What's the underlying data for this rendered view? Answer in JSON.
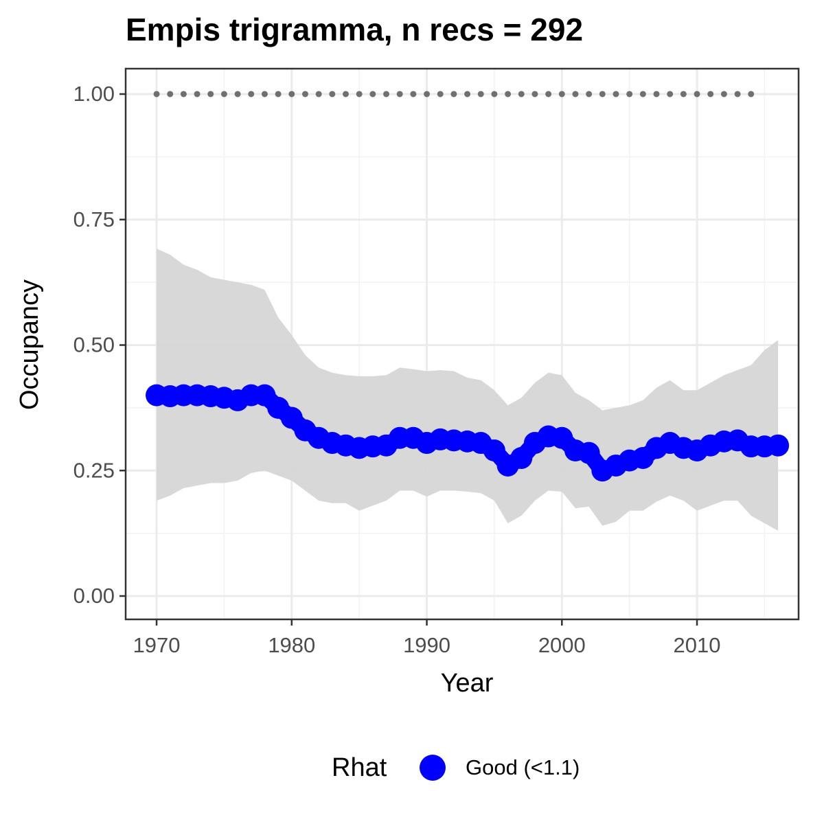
{
  "chart_data": {
    "type": "line",
    "title": "Empis trigramma, n recs = 292",
    "xlabel": "Year",
    "ylabel": "Occupancy",
    "legend_title": "Rhat",
    "x": [
      1970,
      1971,
      1972,
      1973,
      1974,
      1975,
      1976,
      1977,
      1978,
      1979,
      1980,
      1981,
      1982,
      1983,
      1984,
      1985,
      1986,
      1987,
      1988,
      1989,
      1990,
      1991,
      1992,
      1993,
      1994,
      1995,
      1996,
      1997,
      1998,
      1999,
      2000,
      2001,
      2002,
      2003,
      2004,
      2005,
      2006,
      2007,
      2008,
      2009,
      2010,
      2011,
      2012,
      2013,
      2014,
      2015,
      2016
    ],
    "series": [
      {
        "name": "Good (<1.1)",
        "color": "#0000ff",
        "values": [
          0.4,
          0.398,
          0.4,
          0.4,
          0.398,
          0.395,
          0.39,
          0.4,
          0.4,
          0.375,
          0.355,
          0.33,
          0.315,
          0.305,
          0.3,
          0.295,
          0.298,
          0.3,
          0.315,
          0.315,
          0.305,
          0.312,
          0.31,
          0.308,
          0.305,
          0.29,
          0.26,
          0.275,
          0.305,
          0.318,
          0.315,
          0.29,
          0.285,
          0.25,
          0.26,
          0.27,
          0.275,
          0.295,
          0.305,
          0.295,
          0.29,
          0.3,
          0.308,
          0.31,
          0.298,
          0.298,
          0.3
        ]
      }
    ],
    "band": {
      "color": "#d6d6d6",
      "upper": [
        0.692,
        0.68,
        0.66,
        0.65,
        0.635,
        0.63,
        0.625,
        0.62,
        0.61,
        0.555,
        0.52,
        0.48,
        0.455,
        0.445,
        0.44,
        0.438,
        0.438,
        0.44,
        0.455,
        0.452,
        0.448,
        0.45,
        0.448,
        0.435,
        0.43,
        0.41,
        0.38,
        0.395,
        0.425,
        0.445,
        0.44,
        0.405,
        0.39,
        0.37,
        0.375,
        0.38,
        0.39,
        0.415,
        0.43,
        0.41,
        0.41,
        0.425,
        0.44,
        0.45,
        0.46,
        0.49,
        0.51
      ],
      "lower": [
        0.19,
        0.2,
        0.215,
        0.22,
        0.225,
        0.225,
        0.23,
        0.245,
        0.25,
        0.24,
        0.23,
        0.21,
        0.19,
        0.185,
        0.185,
        0.17,
        0.18,
        0.19,
        0.21,
        0.21,
        0.198,
        0.21,
        0.21,
        0.208,
        0.205,
        0.19,
        0.145,
        0.16,
        0.19,
        0.21,
        0.208,
        0.175,
        0.178,
        0.14,
        0.148,
        0.17,
        0.17,
        0.188,
        0.2,
        0.19,
        0.17,
        0.18,
        0.19,
        0.19,
        0.16,
        0.145,
        0.13
      ]
    },
    "reference": {
      "color": "#707070",
      "x": [
        1970,
        1971,
        1972,
        1973,
        1974,
        1975,
        1976,
        1977,
        1978,
        1979,
        1980,
        1981,
        1982,
        1983,
        1984,
        1985,
        1986,
        1987,
        1988,
        1989,
        1990,
        1991,
        1992,
        1993,
        1994,
        1995,
        1996,
        1997,
        1998,
        1999,
        2000,
        2001,
        2002,
        2003,
        2004,
        2005,
        2006,
        2007,
        2008,
        2009,
        2010,
        2011,
        2012,
        2013,
        2014
      ],
      "values": [
        1,
        1,
        1,
        1,
        1,
        1,
        1,
        1,
        1,
        1,
        1,
        1,
        1,
        1,
        1,
        1,
        1,
        1,
        1,
        1,
        1,
        1,
        1,
        1,
        1,
        1,
        1,
        1,
        1,
        1,
        1,
        1,
        1,
        1,
        1,
        1,
        1,
        1,
        1,
        1,
        1,
        1,
        1,
        1,
        1
      ]
    },
    "xlim": [
      1967.71,
      2017.52
    ],
    "ylim": [
      -0.0465,
      1.0506
    ],
    "xticks": [
      1970,
      1980,
      1990,
      2000,
      2010
    ],
    "yticks": [
      {
        "value": 0,
        "label": "0.00"
      },
      {
        "value": 0.25,
        "label": "0.25"
      },
      {
        "value": 0.5,
        "label": "0.50"
      },
      {
        "value": 0.75,
        "label": "0.75"
      },
      {
        "value": 1,
        "label": "1.00"
      }
    ],
    "minor_xticks": [
      1975,
      1985,
      1995,
      2005,
      2015
    ],
    "minor_yticks": [
      0.125,
      0.375,
      0.625,
      0.875
    ],
    "grid": true,
    "legend": "bottom"
  }
}
